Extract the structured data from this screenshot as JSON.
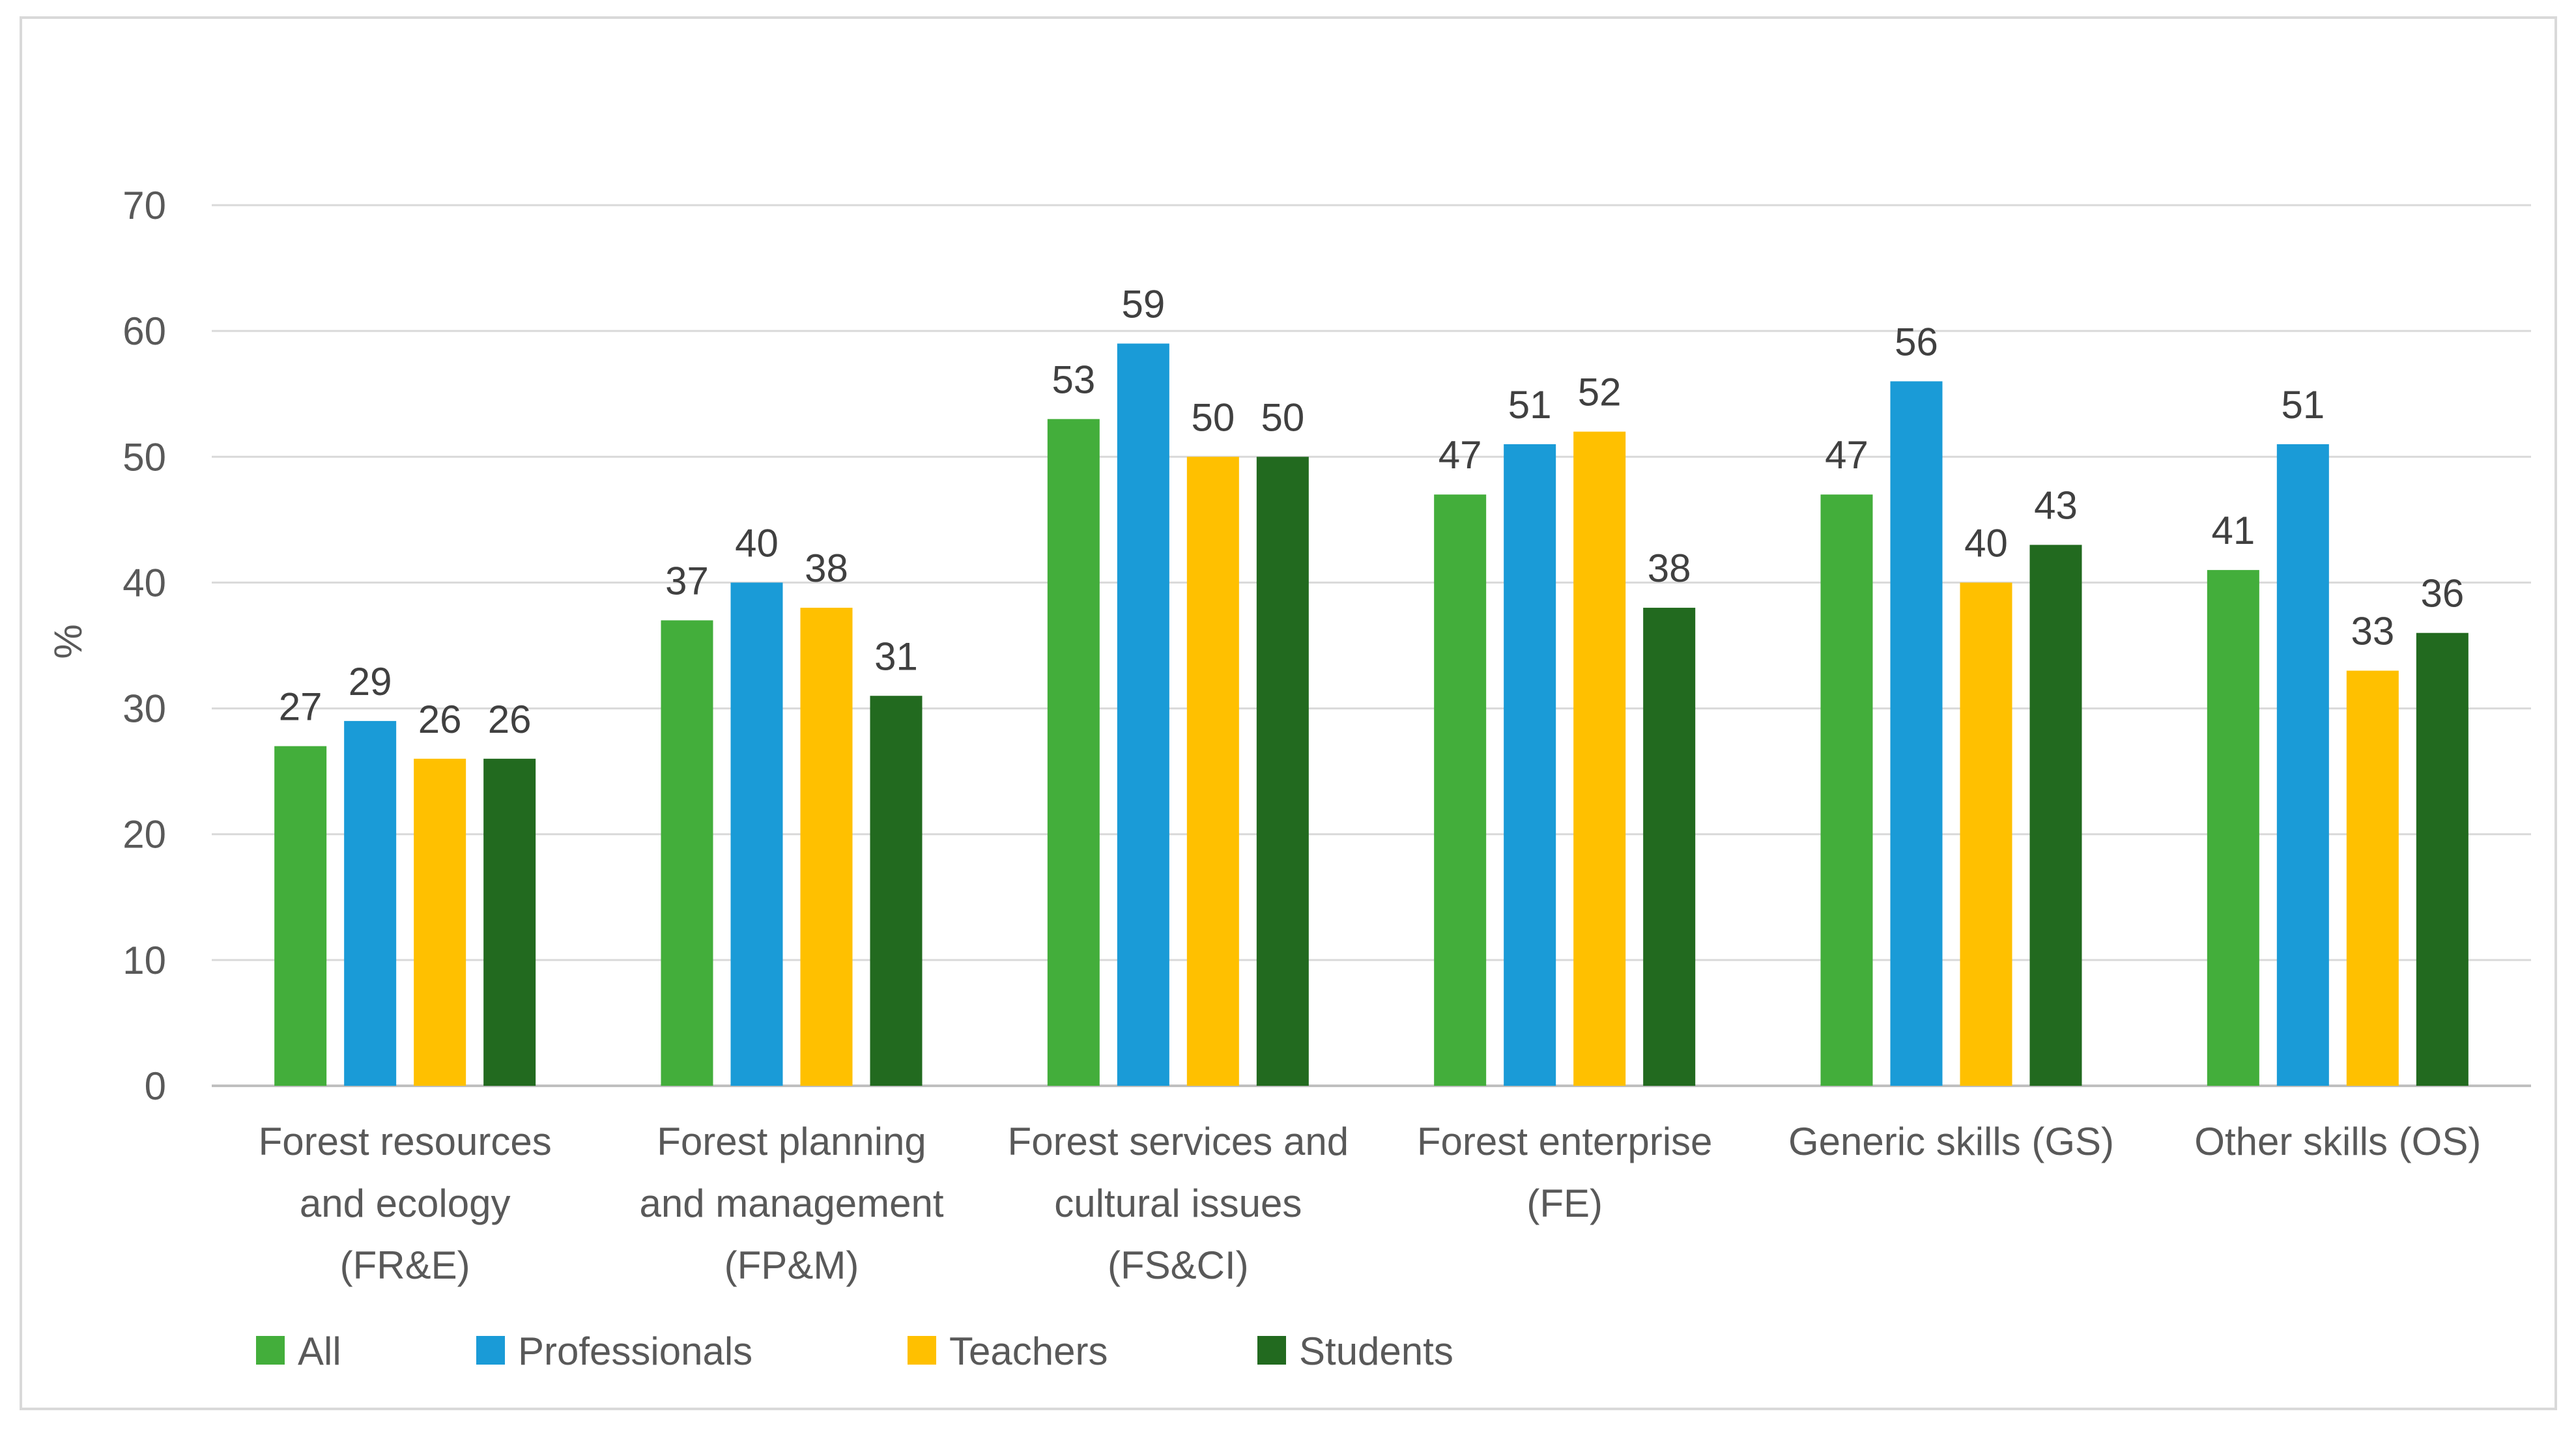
{
  "chart_data": {
    "type": "bar",
    "title": "",
    "xlabel": "",
    "ylabel": "%",
    "ylim": [
      0,
      70
    ],
    "yticks": [
      0,
      10,
      20,
      30,
      40,
      50,
      60,
      70
    ],
    "grid": true,
    "legend_position": "bottom-left",
    "categories": [
      [
        "Forest resources",
        "and ecology",
        "(FR&E)"
      ],
      [
        "Forest planning",
        "and management",
        "(FP&M)"
      ],
      [
        "Forest services and",
        "cultural issues",
        "(FS&CI)"
      ],
      [
        "Forest enterprise",
        "(FE)"
      ],
      [
        "Generic skills (GS)"
      ],
      [
        "Other skills (OS)"
      ]
    ],
    "series": [
      {
        "name": "All",
        "color": "#43ae3b",
        "values": [
          27,
          37,
          53,
          47,
          47,
          41
        ]
      },
      {
        "name": "Professionals",
        "color": "#1a9bd7",
        "values": [
          29,
          40,
          59,
          51,
          56,
          51
        ]
      },
      {
        "name": "Teachers",
        "color": "#ffc000",
        "values": [
          26,
          38,
          50,
          52,
          40,
          33
        ]
      },
      {
        "name": "Students",
        "color": "#226a1f",
        "values": [
          26,
          31,
          50,
          38,
          43,
          36
        ]
      }
    ],
    "colors": {
      "grid": "#d9d9d9",
      "axis": "#bfbfbf",
      "text": "#595959",
      "label": "#404040"
    }
  }
}
